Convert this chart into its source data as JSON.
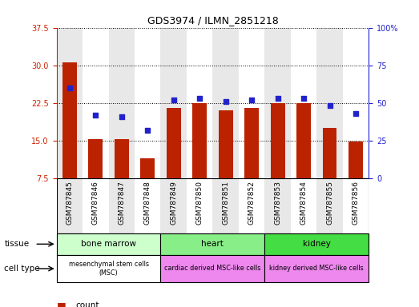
{
  "title": "GDS3974 / ILMN_2851218",
  "samples": [
    "GSM787845",
    "GSM787846",
    "GSM787847",
    "GSM787848",
    "GSM787849",
    "GSM787850",
    "GSM787851",
    "GSM787852",
    "GSM787853",
    "GSM787854",
    "GSM787855",
    "GSM787856"
  ],
  "counts": [
    30.5,
    15.3,
    15.2,
    11.5,
    21.5,
    22.5,
    21.0,
    21.5,
    22.5,
    22.5,
    17.5,
    14.8
  ],
  "percentile_ranks": [
    60,
    42,
    41,
    32,
    52,
    53,
    51,
    52,
    53,
    53,
    48,
    43
  ],
  "ylim_left": [
    7.5,
    37.5
  ],
  "ylim_right": [
    0,
    100
  ],
  "yticks_left": [
    7.5,
    15.0,
    22.5,
    30.0,
    37.5
  ],
  "yticks_right": [
    0,
    25,
    50,
    75,
    100
  ],
  "bar_color": "#bb2200",
  "dot_color": "#2222cc",
  "left_axis_color": "#cc2200",
  "right_axis_color": "#2222cc",
  "tissue_groups": [
    {
      "label": "bone marrow",
      "start": 0,
      "end": 4,
      "color": "#ccffcc"
    },
    {
      "label": "heart",
      "start": 4,
      "end": 8,
      "color": "#88ee88"
    },
    {
      "label": "kidney",
      "start": 8,
      "end": 12,
      "color": "#44dd44"
    }
  ],
  "cell_type_groups": [
    {
      "label": "mesenchymal stem cells\n(MSC)",
      "start": 0,
      "end": 4,
      "color": "#ffffff"
    },
    {
      "label": "cardiac derived MSC-like cells",
      "start": 4,
      "end": 8,
      "color": "#ee88ee"
    },
    {
      "label": "kidney derived MSC-like cells",
      "start": 8,
      "end": 12,
      "color": "#ee88ee"
    }
  ],
  "col_colors": [
    "#e8e8e8",
    "#ffffff"
  ]
}
